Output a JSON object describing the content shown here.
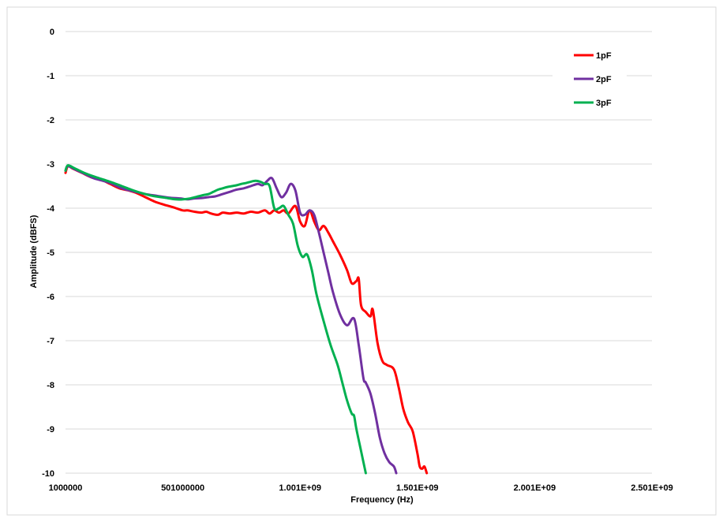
{
  "chart_data": {
    "type": "line",
    "xlabel": "Frequency (Hz)",
    "ylabel": "Amplitude (dBFS)",
    "xlim": [
      1000000,
      2501000000
    ],
    "ylim": [
      -10,
      0
    ],
    "x_tick_labels": [
      "1000000",
      "501000000",
      "1.001E+09",
      "1.501E+09",
      "2.001E+09",
      "2.501E+09"
    ],
    "y_tick_labels": [
      "0",
      "-1",
      "-2",
      "-3",
      "-4",
      "-5",
      "-6",
      "-7",
      "-8",
      "-9",
      "-10"
    ],
    "grid": "horizontal",
    "legend_position": "top-right",
    "series": [
      {
        "name": "1pF",
        "color": "#ff0000",
        "x": [
          1000000,
          11000000,
          31000000,
          71000000,
          111000000,
          151000000,
          191000000,
          231000000,
          271000000,
          301000000,
          341000000,
          381000000,
          421000000,
          461000000,
          501000000,
          521000000,
          551000000,
          581000000,
          601000000,
          621000000,
          651000000,
          671000000,
          701000000,
          731000000,
          761000000,
          791000000,
          821000000,
          851000000,
          871000000,
          891000000,
          911000000,
          931000000,
          951000000,
          981000000,
          1001000000,
          1021000000,
          1041000000,
          1061000000,
          1081000000,
          1101000000,
          1121000000,
          1141000000,
          1171000000,
          1201000000,
          1221000000,
          1241000000,
          1251000000,
          1261000000,
          1281000000,
          1301000000,
          1311000000,
          1331000000,
          1351000000,
          1371000000,
          1401000000,
          1421000000,
          1441000000,
          1461000000,
          1481000000,
          1501000000,
          1511000000,
          1521000000,
          1531000000,
          1541000000
        ],
        "y": [
          -3.2,
          -3.05,
          -3.1,
          -3.2,
          -3.3,
          -3.35,
          -3.45,
          -3.55,
          -3.6,
          -3.65,
          -3.75,
          -3.85,
          -3.92,
          -3.98,
          -4.05,
          -4.05,
          -4.08,
          -4.1,
          -4.08,
          -4.12,
          -4.15,
          -4.1,
          -4.12,
          -4.1,
          -4.12,
          -4.08,
          -4.1,
          -4.05,
          -4.12,
          -4.05,
          -4.1,
          -4.05,
          -4.12,
          -3.95,
          -4.3,
          -4.4,
          -4.05,
          -4.3,
          -4.5,
          -4.4,
          -4.55,
          -4.75,
          -5.05,
          -5.4,
          -5.7,
          -5.65,
          -5.6,
          -6.2,
          -6.35,
          -6.45,
          -6.3,
          -7.05,
          -7.45,
          -7.55,
          -7.65,
          -8.05,
          -8.55,
          -8.85,
          -9.05,
          -9.55,
          -9.85,
          -9.9,
          -9.85,
          -10.0
        ]
      },
      {
        "name": "2pF",
        "color": "#7030a0",
        "x": [
          1000000,
          11000000,
          41000000,
          81000000,
          121000000,
          161000000,
          201000000,
          241000000,
          291000000,
          341000000,
          391000000,
          441000000,
          491000000,
          521000000,
          551000000,
          581000000,
          611000000,
          641000000,
          671000000,
          701000000,
          731000000,
          761000000,
          791000000,
          821000000,
          841000000,
          861000000,
          881000000,
          901000000,
          921000000,
          941000000,
          961000000,
          981000000,
          1001000000,
          1021000000,
          1041000000,
          1061000000,
          1081000000,
          1101000000,
          1121000000,
          1141000000,
          1171000000,
          1201000000,
          1231000000,
          1251000000,
          1271000000,
          1281000000,
          1301000000,
          1321000000,
          1341000000,
          1361000000,
          1381000000,
          1401000000,
          1411000000
        ],
        "y": [
          -3.15,
          -3.05,
          -3.12,
          -3.22,
          -3.32,
          -3.38,
          -3.45,
          -3.55,
          -3.62,
          -3.68,
          -3.72,
          -3.76,
          -3.78,
          -3.8,
          -3.78,
          -3.77,
          -3.75,
          -3.73,
          -3.68,
          -3.63,
          -3.58,
          -3.55,
          -3.5,
          -3.45,
          -3.48,
          -3.38,
          -3.32,
          -3.55,
          -3.75,
          -3.65,
          -3.45,
          -3.6,
          -4.1,
          -4.15,
          -4.05,
          -4.15,
          -4.55,
          -5.0,
          -5.45,
          -5.9,
          -6.4,
          -6.65,
          -6.5,
          -7.1,
          -7.85,
          -7.95,
          -8.2,
          -8.65,
          -9.2,
          -9.55,
          -9.75,
          -9.85,
          -10.0
        ]
      },
      {
        "name": "3pF",
        "color": "#00b050",
        "x": [
          1000000,
          11000000,
          41000000,
          81000000,
          121000000,
          161000000,
          201000000,
          241000000,
          281000000,
          321000000,
          371000000,
          421000000,
          471000000,
          501000000,
          531000000,
          561000000,
          591000000,
          611000000,
          631000000,
          651000000,
          671000000,
          691000000,
          711000000,
          731000000,
          751000000,
          771000000,
          791000000,
          811000000,
          831000000,
          851000000,
          871000000,
          891000000,
          911000000,
          931000000,
          951000000,
          971000000,
          991000000,
          1011000000,
          1031000000,
          1051000000,
          1071000000,
          1101000000,
          1131000000,
          1161000000,
          1181000000,
          1201000000,
          1221000000,
          1231000000,
          1241000000,
          1261000000,
          1281000000
        ],
        "y": [
          -3.15,
          -3.03,
          -3.1,
          -3.2,
          -3.28,
          -3.35,
          -3.42,
          -3.5,
          -3.58,
          -3.65,
          -3.72,
          -3.76,
          -3.8,
          -3.8,
          -3.78,
          -3.74,
          -3.7,
          -3.68,
          -3.63,
          -3.58,
          -3.55,
          -3.52,
          -3.5,
          -3.48,
          -3.45,
          -3.43,
          -3.4,
          -3.38,
          -3.4,
          -3.45,
          -3.5,
          -4.0,
          -4.0,
          -3.95,
          -4.15,
          -4.35,
          -4.85,
          -5.1,
          -5.05,
          -5.4,
          -5.95,
          -6.55,
          -7.1,
          -7.55,
          -7.95,
          -8.35,
          -8.65,
          -8.7,
          -9.0,
          -9.5,
          -10.0
        ]
      }
    ]
  }
}
